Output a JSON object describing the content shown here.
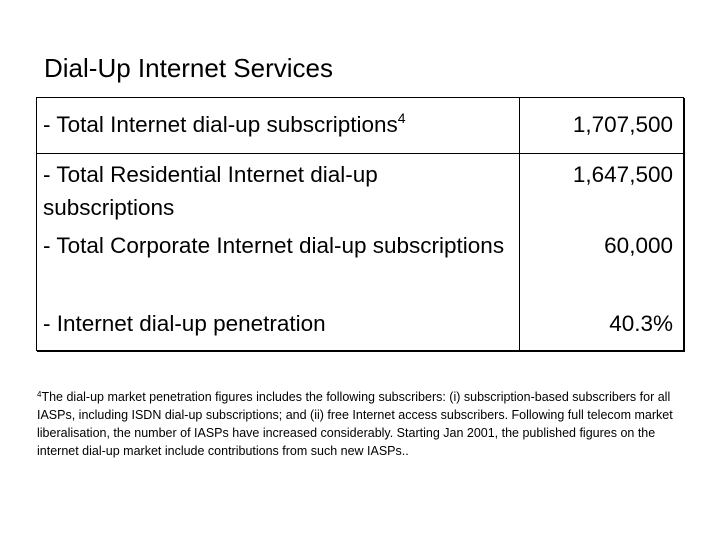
{
  "title": "Dial-Up Internet Services",
  "rows": [
    {
      "label": "- Total Internet dial-up subscriptions",
      "footnote_ref": "4",
      "value": "1,707,500"
    },
    {
      "label": "- Total Residential Internet dial-up subscriptions",
      "value": "1,647,500"
    },
    {
      "label": "- Total Corporate Internet dial-up subscriptions",
      "value": "60,000"
    },
    {
      "label": "- Internet dial-up penetration",
      "value": "40.3%"
    }
  ],
  "footnote": {
    "marker": "4",
    "text": "The dial-up market penetration figures includes the following subscribers: (i) subscription-based subscribers for all IASPs, including ISDN dial-up subscriptions; and (ii) free Internet access subscribers. Following full telecom market liberalisation, the number of IASPs have increased considerably. Starting Jan 2001, the published figures on the internet dial-up market include contributions from such new IASPs.."
  }
}
